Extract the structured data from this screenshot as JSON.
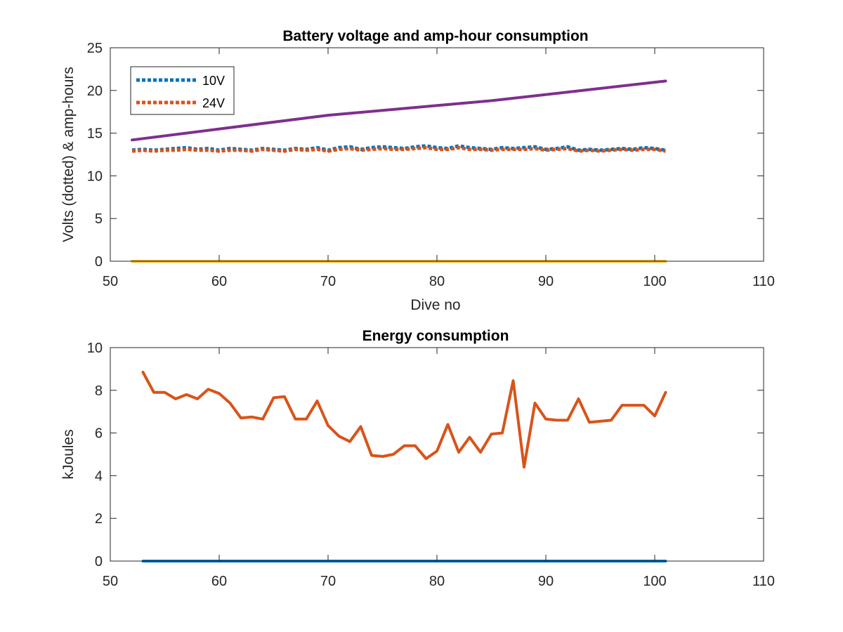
{
  "chart_data": [
    {
      "type": "line",
      "title": "Battery voltage and amp-hour consumption",
      "xlabel": "Dive no",
      "ylabel": "Volts (dotted) & amp-hours",
      "xlim": [
        50,
        110
      ],
      "ylim": [
        0,
        25
      ],
      "xticks": [
        "50",
        "60",
        "70",
        "80",
        "90",
        "100",
        "110"
      ],
      "yticks": [
        "0",
        "5",
        "10",
        "15",
        "20",
        "25"
      ],
      "grid": false,
      "legend_position": "top-left",
      "series": [
        {
          "name": "10V",
          "style": "dotted",
          "color": "#0072BD",
          "x": [
            52,
            53,
            54,
            55,
            56,
            57,
            58,
            59,
            60,
            61,
            62,
            63,
            64,
            65,
            66,
            67,
            68,
            69,
            70,
            71,
            72,
            73,
            74,
            75,
            76,
            77,
            78,
            79,
            80,
            81,
            82,
            83,
            84,
            85,
            86,
            87,
            88,
            89,
            90,
            91,
            92,
            93,
            94,
            95,
            96,
            97,
            98,
            99,
            100,
            101
          ],
          "y": [
            13.0,
            13.1,
            13.0,
            13.1,
            13.2,
            13.3,
            13.1,
            13.2,
            13.0,
            13.2,
            13.1,
            13.0,
            13.2,
            13.1,
            13.0,
            13.2,
            13.1,
            13.3,
            13.0,
            13.3,
            13.4,
            13.1,
            13.3,
            13.4,
            13.3,
            13.2,
            13.4,
            13.5,
            13.3,
            13.2,
            13.5,
            13.3,
            13.2,
            13.1,
            13.3,
            13.2,
            13.3,
            13.4,
            13.1,
            13.2,
            13.4,
            13.0,
            13.1,
            13.0,
            13.1,
            13.2,
            13.1,
            13.3,
            13.2,
            13.0
          ]
        },
        {
          "name": "24V",
          "style": "dotted",
          "color": "#D95319",
          "x": [
            52,
            53,
            54,
            55,
            56,
            57,
            58,
            59,
            60,
            61,
            62,
            63,
            64,
            65,
            66,
            67,
            68,
            69,
            70,
            71,
            72,
            73,
            74,
            75,
            76,
            77,
            78,
            79,
            80,
            81,
            82,
            83,
            84,
            85,
            86,
            87,
            88,
            89,
            90,
            91,
            92,
            93,
            94,
            95,
            96,
            97,
            98,
            99,
            100,
            101
          ],
          "y": [
            12.9,
            13.0,
            12.9,
            13.0,
            13.0,
            13.1,
            13.0,
            13.0,
            12.9,
            13.0,
            13.0,
            12.9,
            13.1,
            13.0,
            12.9,
            13.1,
            13.0,
            13.1,
            12.9,
            13.1,
            13.2,
            13.0,
            13.1,
            13.2,
            13.1,
            13.1,
            13.2,
            13.3,
            13.1,
            13.1,
            13.3,
            13.1,
            13.1,
            13.0,
            13.1,
            13.1,
            13.1,
            13.2,
            13.0,
            13.1,
            13.2,
            12.9,
            13.0,
            12.9,
            13.0,
            13.1,
            13.0,
            13.1,
            13.1,
            12.9
          ]
        },
        {
          "style": "solid",
          "color": "#7E2F8E",
          "x": [
            52,
            70,
            85,
            101
          ],
          "y": [
            14.2,
            17.1,
            18.8,
            21.1
          ]
        },
        {
          "style": "solid",
          "color": "#EDB120",
          "x": [
            52,
            101
          ],
          "y": [
            0,
            0
          ]
        }
      ]
    },
    {
      "type": "line",
      "title": "Energy consumption",
      "xlabel": "",
      "ylabel": "kJoules",
      "xlim": [
        50,
        110
      ],
      "ylim": [
        0,
        10
      ],
      "xticks": [
        "50",
        "60",
        "70",
        "80",
        "90",
        "100",
        "110"
      ],
      "yticks": [
        "0",
        "2",
        "4",
        "6",
        "8",
        "10"
      ],
      "grid": false,
      "series": [
        {
          "style": "solid",
          "color": "#0072BD",
          "x": [
            53,
            101
          ],
          "y": [
            0,
            0
          ]
        },
        {
          "style": "solid",
          "color": "#D95319",
          "x": [
            53,
            54,
            55,
            56,
            57,
            58,
            59,
            60,
            61,
            62,
            63,
            64,
            65,
            66,
            67,
            68,
            69,
            70,
            71,
            72,
            73,
            74,
            75,
            76,
            77,
            78,
            79,
            80,
            81,
            82,
            83,
            84,
            85,
            86,
            87,
            88,
            89,
            90,
            91,
            92,
            93,
            94,
            95,
            96,
            97,
            98,
            99,
            100,
            101
          ],
          "y": [
            8.85,
            7.9,
            7.9,
            7.6,
            7.8,
            7.6,
            8.05,
            7.85,
            7.4,
            6.7,
            6.75,
            6.65,
            7.65,
            7.7,
            6.65,
            6.65,
            7.5,
            6.35,
            5.85,
            5.6,
            6.3,
            4.95,
            4.9,
            5.0,
            5.4,
            5.4,
            4.8,
            5.15,
            6.4,
            5.1,
            5.8,
            5.1,
            5.95,
            6.0,
            8.45,
            4.4,
            7.4,
            6.65,
            6.6,
            6.6,
            7.6,
            6.5,
            6.55,
            6.6,
            7.3,
            7.3,
            7.3,
            6.8,
            7.9
          ]
        }
      ]
    }
  ]
}
